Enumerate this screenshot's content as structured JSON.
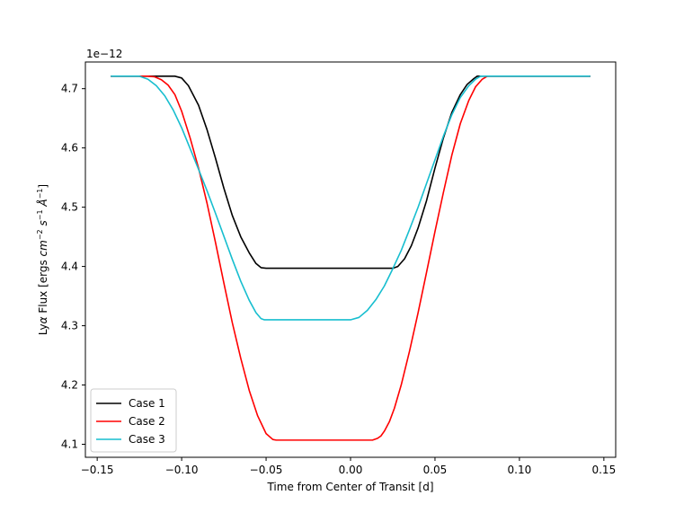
{
  "chart_data": {
    "type": "line",
    "title": "",
    "xlabel": "Time from Center of Transit [d]",
    "ylabel_parts": {
      "prefix": "Ly",
      "alpha": "α",
      "text": " Flux [ergs ",
      "cm": "cm",
      "cm_exp": "−2",
      "s": "s",
      "s_exp": "−1",
      "A": "Å",
      "A_exp": "−1",
      "close": "]"
    },
    "offset_text": "1e−12",
    "xlim": [
      -0.157,
      0.157
    ],
    "ylim": [
      4.078,
      4.745
    ],
    "xticks": [
      -0.15,
      -0.1,
      -0.05,
      0.0,
      0.05,
      0.1,
      0.15
    ],
    "xtick_labels": [
      "−0.15",
      "−0.10",
      "−0.05",
      "0.00",
      "0.05",
      "0.10",
      "0.15"
    ],
    "yticks": [
      4.1,
      4.2,
      4.3,
      4.4,
      4.5,
      4.6,
      4.7
    ],
    "ytick_labels": [
      "4.1",
      "4.2",
      "4.3",
      "4.4",
      "4.5",
      "4.6",
      "4.7"
    ],
    "grid": false,
    "legend_position": "lower-left",
    "series": [
      {
        "name": "Case 1",
        "color": "#000000",
        "x": [
          -0.142,
          -0.12,
          -0.104,
          -0.1,
          -0.096,
          -0.09,
          -0.085,
          -0.08,
          -0.075,
          -0.07,
          -0.065,
          -0.06,
          -0.056,
          -0.053,
          -0.05,
          0.0,
          0.025,
          0.028,
          0.032,
          0.036,
          0.04,
          0.045,
          0.05,
          0.055,
          0.06,
          0.065,
          0.069,
          0.073,
          0.075,
          0.08,
          0.1,
          0.142
        ],
        "y": [
          4.721,
          4.721,
          4.721,
          4.718,
          4.705,
          4.672,
          4.631,
          4.583,
          4.532,
          4.486,
          4.45,
          4.423,
          4.405,
          4.398,
          4.397,
          4.397,
          4.397,
          4.4,
          4.413,
          4.435,
          4.465,
          4.511,
          4.566,
          4.617,
          4.66,
          4.69,
          4.707,
          4.717,
          4.721,
          4.721,
          4.721,
          4.721
        ]
      },
      {
        "name": "Case 2",
        "color": "#ff0000",
        "x": [
          -0.142,
          -0.12,
          -0.116,
          -0.112,
          -0.108,
          -0.104,
          -0.1,
          -0.095,
          -0.09,
          -0.085,
          -0.08,
          -0.075,
          -0.07,
          -0.065,
          -0.06,
          -0.055,
          -0.05,
          -0.046,
          -0.044,
          -0.043,
          0.0,
          0.013,
          0.016,
          0.018,
          0.02,
          0.023,
          0.026,
          0.03,
          0.035,
          0.04,
          0.045,
          0.05,
          0.055,
          0.06,
          0.065,
          0.07,
          0.074,
          0.078,
          0.081,
          0.085,
          0.1,
          0.142
        ],
        "y": [
          4.721,
          4.721,
          4.72,
          4.715,
          4.706,
          4.69,
          4.662,
          4.617,
          4.566,
          4.507,
          4.441,
          4.372,
          4.305,
          4.245,
          4.191,
          4.148,
          4.118,
          4.108,
          4.107,
          4.107,
          4.107,
          4.107,
          4.11,
          4.114,
          4.122,
          4.138,
          4.161,
          4.2,
          4.258,
          4.322,
          4.39,
          4.459,
          4.525,
          4.588,
          4.641,
          4.68,
          4.703,
          4.716,
          4.721,
          4.721,
          4.721,
          4.721
        ]
      },
      {
        "name": "Case 3",
        "color": "#17becf",
        "x": [
          -0.142,
          -0.125,
          -0.12,
          -0.115,
          -0.11,
          -0.105,
          -0.1,
          -0.095,
          -0.09,
          -0.085,
          -0.08,
          -0.075,
          -0.07,
          -0.065,
          -0.06,
          -0.056,
          -0.053,
          -0.051,
          0.0,
          0.005,
          0.01,
          0.015,
          0.02,
          0.025,
          0.03,
          0.035,
          0.04,
          0.045,
          0.05,
          0.055,
          0.06,
          0.065,
          0.07,
          0.074,
          0.077,
          0.08,
          0.1,
          0.142
        ],
        "y": [
          4.721,
          4.721,
          4.716,
          4.705,
          4.688,
          4.664,
          4.634,
          4.599,
          4.564,
          4.528,
          4.49,
          4.451,
          4.412,
          4.375,
          4.343,
          4.322,
          4.312,
          4.31,
          4.31,
          4.314,
          4.326,
          4.344,
          4.367,
          4.396,
          4.427,
          4.463,
          4.5,
          4.54,
          4.58,
          4.62,
          4.656,
          4.685,
          4.705,
          4.716,
          4.721,
          4.721,
          4.721,
          4.721
        ]
      }
    ]
  }
}
